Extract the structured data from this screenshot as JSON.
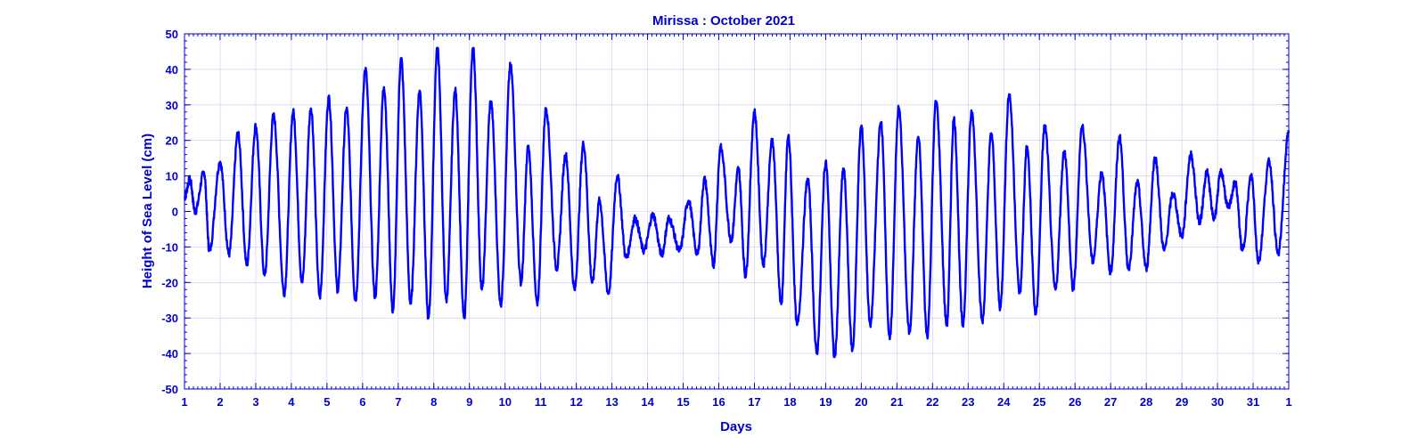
{
  "chart_data": {
    "type": "line",
    "title": "Mirissa  : October 2021",
    "xlabel": "Days",
    "ylabel": "Height of Sea Level (cm)",
    "xlim": [
      1,
      32
    ],
    "ylim": [
      -50,
      50
    ],
    "x_ticks": [
      1,
      2,
      3,
      4,
      5,
      6,
      7,
      8,
      9,
      10,
      11,
      12,
      13,
      14,
      15,
      16,
      17,
      18,
      19,
      20,
      21,
      22,
      23,
      24,
      25,
      26,
      27,
      28,
      29,
      30,
      31,
      32
    ],
    "x_tick_labels": [
      "1",
      "2",
      "3",
      "4",
      "5",
      "6",
      "7",
      "8",
      "9",
      "10",
      "11",
      "12",
      "13",
      "14",
      "15",
      "16",
      "17",
      "18",
      "19",
      "20",
      "21",
      "22",
      "23",
      "24",
      "25",
      "26",
      "27",
      "28",
      "29",
      "30",
      "31",
      "1"
    ],
    "y_ticks": [
      -50,
      -40,
      -30,
      -20,
      -10,
      0,
      10,
      20,
      30,
      40,
      50
    ],
    "grid": true,
    "colors": {
      "text": "#0000cc",
      "line": "#0000ff",
      "grid": "#c8c8ee"
    },
    "series_extrema": [
      [
        1.0,
        4
      ],
      [
        1.15,
        9
      ],
      [
        1.3,
        0
      ],
      [
        1.55,
        11
      ],
      [
        1.7,
        -11
      ],
      [
        2.0,
        14
      ],
      [
        2.25,
        -12
      ],
      [
        2.5,
        22
      ],
      [
        2.75,
        -15
      ],
      [
        3.0,
        24
      ],
      [
        3.25,
        -18
      ],
      [
        3.5,
        27
      ],
      [
        3.8,
        -23
      ],
      [
        4.05,
        28
      ],
      [
        4.3,
        -20
      ],
      [
        4.55,
        29
      ],
      [
        4.8,
        -24
      ],
      [
        5.05,
        32
      ],
      [
        5.3,
        -22
      ],
      [
        5.55,
        29
      ],
      [
        5.8,
        -25
      ],
      [
        6.08,
        40
      ],
      [
        6.35,
        -24
      ],
      [
        6.6,
        35
      ],
      [
        6.85,
        -28
      ],
      [
        7.08,
        43
      ],
      [
        7.35,
        -26
      ],
      [
        7.6,
        34
      ],
      [
        7.85,
        -30
      ],
      [
        8.1,
        46
      ],
      [
        8.35,
        -25
      ],
      [
        8.6,
        34
      ],
      [
        8.85,
        -30
      ],
      [
        9.1,
        46
      ],
      [
        9.35,
        -22
      ],
      [
        9.6,
        31
      ],
      [
        9.88,
        -26
      ],
      [
        10.15,
        41
      ],
      [
        10.45,
        -20
      ],
      [
        10.65,
        18
      ],
      [
        10.9,
        -26
      ],
      [
        11.15,
        29
      ],
      [
        11.45,
        -16
      ],
      [
        11.7,
        16
      ],
      [
        11.95,
        -22
      ],
      [
        12.2,
        19
      ],
      [
        12.45,
        -20
      ],
      [
        12.65,
        3
      ],
      [
        12.9,
        -23
      ],
      [
        13.15,
        10
      ],
      [
        13.4,
        -13
      ],
      [
        13.65,
        -2
      ],
      [
        13.9,
        -11
      ],
      [
        14.15,
        -1
      ],
      [
        14.4,
        -12
      ],
      [
        14.6,
        -2
      ],
      [
        14.9,
        -11
      ],
      [
        15.15,
        3
      ],
      [
        15.4,
        -12
      ],
      [
        15.6,
        9
      ],
      [
        15.85,
        -15
      ],
      [
        16.05,
        18
      ],
      [
        16.35,
        -8
      ],
      [
        16.55,
        12
      ],
      [
        16.75,
        -18
      ],
      [
        17.0,
        28
      ],
      [
        17.25,
        -15
      ],
      [
        17.5,
        20
      ],
      [
        17.75,
        -26
      ],
      [
        17.95,
        21
      ],
      [
        18.2,
        -32
      ],
      [
        18.5,
        9
      ],
      [
        18.75,
        -40
      ],
      [
        19.0,
        14
      ],
      [
        19.25,
        -41
      ],
      [
        19.5,
        12
      ],
      [
        19.75,
        -39
      ],
      [
        20.0,
        24
      ],
      [
        20.25,
        -32
      ],
      [
        20.55,
        25
      ],
      [
        20.8,
        -36
      ],
      [
        21.05,
        29
      ],
      [
        21.35,
        -34
      ],
      [
        21.6,
        21
      ],
      [
        21.85,
        -35
      ],
      [
        22.1,
        31
      ],
      [
        22.4,
        -32
      ],
      [
        22.6,
        26
      ],
      [
        22.85,
        -32
      ],
      [
        23.1,
        28
      ],
      [
        23.4,
        -31
      ],
      [
        23.65,
        22
      ],
      [
        23.9,
        -27
      ],
      [
        24.15,
        33
      ],
      [
        24.45,
        -23
      ],
      [
        24.65,
        18
      ],
      [
        24.9,
        -29
      ],
      [
        25.15,
        24
      ],
      [
        25.45,
        -22
      ],
      [
        25.7,
        17
      ],
      [
        25.95,
        -22
      ],
      [
        26.2,
        24
      ],
      [
        26.5,
        -14
      ],
      [
        26.75,
        11
      ],
      [
        27.0,
        -17
      ],
      [
        27.25,
        21
      ],
      [
        27.5,
        -16
      ],
      [
        27.75,
        8
      ],
      [
        28.0,
        -16
      ],
      [
        28.25,
        15
      ],
      [
        28.5,
        -11
      ],
      [
        28.75,
        5
      ],
      [
        29.0,
        -7
      ],
      [
        29.25,
        16
      ],
      [
        29.5,
        -3
      ],
      [
        29.7,
        11
      ],
      [
        29.9,
        -2
      ],
      [
        30.1,
        11
      ],
      [
        30.3,
        1
      ],
      [
        30.5,
        8
      ],
      [
        30.7,
        -11
      ],
      [
        30.95,
        10
      ],
      [
        31.15,
        -14
      ],
      [
        31.45,
        14
      ],
      [
        31.7,
        -12
      ],
      [
        32.0,
        22
      ]
    ]
  }
}
